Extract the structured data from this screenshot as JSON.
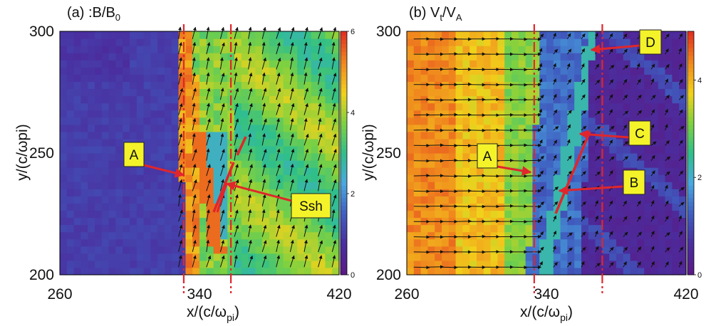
{
  "colors": {
    "field_stops": [
      "#5a1a86",
      "#4a2fa0",
      "#3f5fc0",
      "#4aa8e0",
      "#2fbf8a",
      "#7ed140",
      "#f2d21b",
      "#f08a1e",
      "#e23320"
    ],
    "callout_fill": "#f4f32a",
    "marker_line": "#e0262c",
    "arrow": "#111111"
  },
  "chart_data": [
    {
      "id": "a",
      "type": "heatmap",
      "title": "(a) :B/B",
      "title_sub": "0",
      "xlabel": "x/(c/ω",
      "xlabel_sub": "pi",
      "xlabel_close": ")",
      "ylabel": "y/(c/ωpi)",
      "xlim": [
        260,
        420
      ],
      "ylim": [
        200,
        300
      ],
      "xticks": [
        "260",
        "340",
        "420"
      ],
      "yticks": [
        "200",
        "250",
        "300"
      ],
      "colorbar": {
        "min": 0,
        "max": 6,
        "ticks": [
          "0",
          "2",
          "4",
          "6"
        ]
      },
      "quiver": "vector field overlay",
      "dashdot_lines_x": [
        331,
        358
      ],
      "annotations": [
        {
          "label": "A",
          "target": [
            329,
            242
          ]
        },
        {
          "label": "Ssh",
          "target": [
            345,
            238
          ]
        }
      ]
    },
    {
      "id": "b",
      "type": "heatmap",
      "title": "(b) V",
      "title_sub1": "t",
      "title_mid": "/V",
      "title_sub2": "A",
      "xlabel": "x/(c/ω",
      "xlabel_sub": "pi",
      "xlabel_close": ")",
      "ylabel": "y/(c/ωpi)",
      "xlim": [
        260,
        420
      ],
      "ylim": [
        200,
        300
      ],
      "xticks": [
        "260",
        "340",
        "420"
      ],
      "yticks": [
        "200",
        "250",
        "300"
      ],
      "colorbar": {
        "min": 0,
        "max": 5,
        "ticks": [
          "0",
          "2",
          "4"
        ]
      },
      "quiver": "vector field overlay",
      "dashdot_lines_x": [
        333,
        372
      ],
      "annotations": [
        {
          "label": "A",
          "target": [
            333,
            243
          ]
        },
        {
          "label": "B",
          "target": [
            347,
            234
          ]
        },
        {
          "label": "C",
          "target": [
            357,
            259
          ]
        },
        {
          "label": "D",
          "target": [
            359,
            298
          ]
        }
      ]
    }
  ]
}
